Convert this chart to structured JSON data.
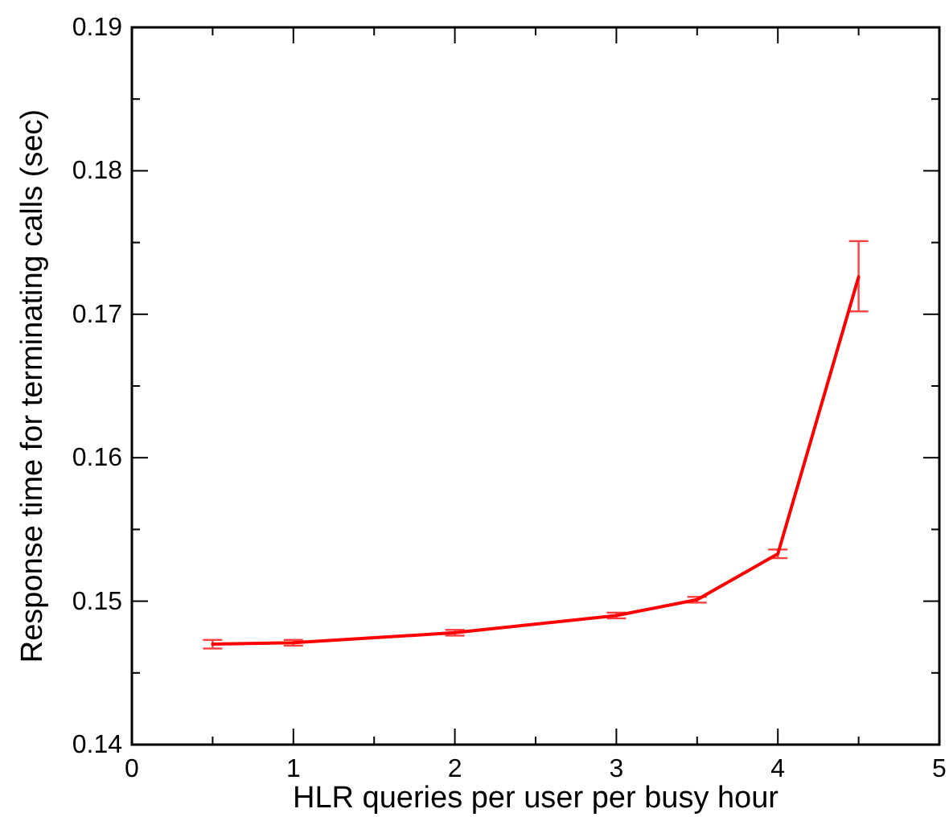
{
  "chart_data": {
    "type": "line",
    "xlabel": "HLR queries per user per busy hour",
    "ylabel": "Response time for terminating calls (sec)",
    "x": [
      0.5,
      1,
      2,
      3,
      3.5,
      4,
      4.5
    ],
    "series": [
      {
        "color": "#ff0000",
        "values": [
          0.147,
          0.1471,
          0.1478,
          0.149,
          0.1501,
          0.1533,
          0.1726
        ],
        "errors": [
          0.0003,
          0.0002,
          0.0002,
          0.0002,
          0.0002,
          0.0003,
          [
            0.1702,
            0.1751
          ]
        ]
      }
    ],
    "xlim": [
      0,
      5
    ],
    "xticks": [
      0,
      {
        "value": 0.5,
        "label": null
      },
      1,
      {
        "value": 1.5,
        "label": null
      },
      2,
      {
        "value": 2.5,
        "label": null
      },
      3,
      {
        "value": 3.5,
        "label": null
      },
      4,
      {
        "value": 4.5,
        "label": null
      },
      5
    ],
    "ylim": [
      0.14,
      0.19
    ],
    "yticks": [
      0.14,
      {
        "value": 0.145,
        "label": null
      },
      0.15,
      {
        "value": 0.155,
        "label": null
      },
      0.16,
      {
        "value": 0.165,
        "label": null
      },
      0.17,
      {
        "value": 0.175,
        "label": null
      },
      0.18,
      {
        "value": 0.185,
        "label": null
      },
      0.19
    ],
    "marker": "none",
    "line_style": "solid",
    "grid": false
  }
}
